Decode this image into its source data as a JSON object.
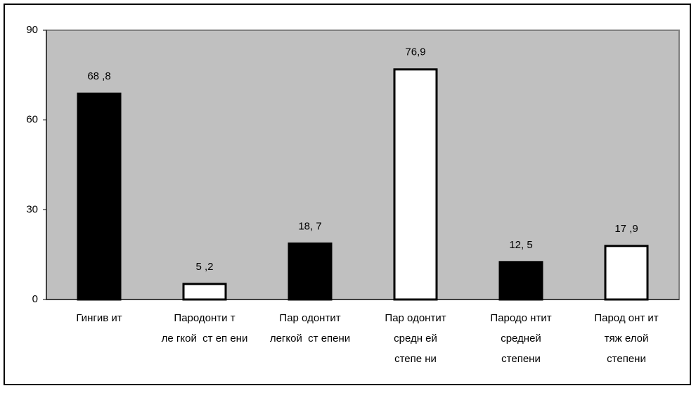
{
  "chart_data": {
    "type": "bar",
    "categories": [
      [
        "Гингив ит"
      ],
      [
        "Пародонти т",
        "ле гкой  ст еп ени"
      ],
      [
        "Пар одонтит",
        "легкой  ст епени"
      ],
      [
        "Пар одонтит",
        "средн ей",
        "степе ни"
      ],
      [
        "Пародо нтит",
        "средней",
        "степени"
      ],
      [
        "Парод онт ит",
        "тяж елой",
        "степени"
      ]
    ],
    "values": [
      68.8,
      5.2,
      18.7,
      76.9,
      12.5,
      17.9
    ],
    "value_labels": [
      "68 ,8",
      "5 ,2",
      "18, 7",
      "76,9",
      "12, 5",
      "17 ,9"
    ],
    "colors": [
      "#000000",
      "#ffffff",
      "#000000",
      "#ffffff",
      "#000000",
      "#ffffff"
    ],
    "plot_background": "#c0c0c0",
    "ylim": [
      0,
      90
    ],
    "yticks": [
      0,
      30,
      60,
      90
    ],
    "grid": false
  }
}
